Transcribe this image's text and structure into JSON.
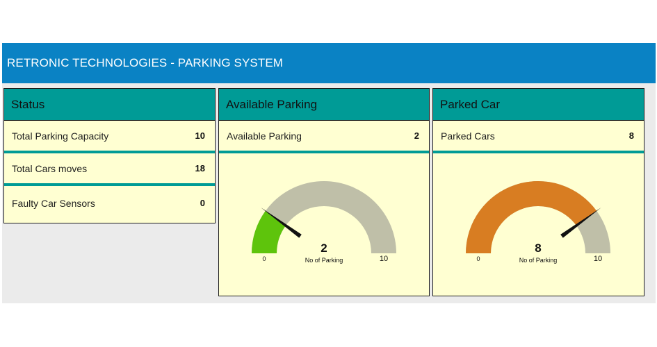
{
  "header": {
    "title": "RETRONIC TECHNOLOGIES - PARKING SYSTEM"
  },
  "status": {
    "title": "Status",
    "rows": [
      {
        "label": "Total Parking Capacity",
        "value": "10"
      },
      {
        "label": "Total Cars moves",
        "value": "18"
      },
      {
        "label": "Faulty Car Sensors",
        "value": "0"
      }
    ]
  },
  "available": {
    "title": "Available Parking",
    "row": {
      "label": "Available Parking",
      "value": "2"
    },
    "gauge": {
      "value": 2,
      "min": 0,
      "max": 10,
      "value_label": "2",
      "min_label": "0",
      "max_label": "10",
      "caption": "No of Parking",
      "fill_color": "#5ec40c",
      "track_color": "#bfbfa8"
    }
  },
  "parked": {
    "title": "Parked Car",
    "row": {
      "label": "Parked Cars",
      "value": "8"
    },
    "gauge": {
      "value": 8,
      "min": 0,
      "max": 10,
      "value_label": "8",
      "min_label": "0",
      "max_label": "10",
      "caption": "No of Parking",
      "fill_color": "#d87d22",
      "track_color": "#bfbfa8"
    }
  }
}
